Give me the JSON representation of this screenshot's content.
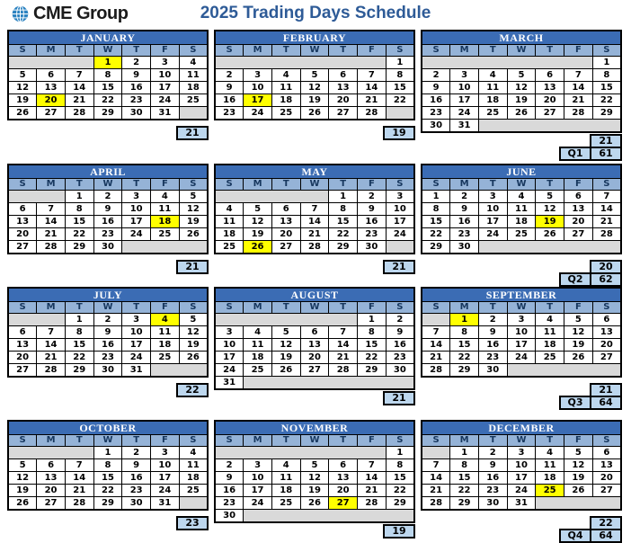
{
  "header": {
    "logo": {
      "icon": "globe-icon",
      "cme": "CME",
      "group": "Group"
    },
    "title": "2025 Trading Days Schedule"
  },
  "colors": {
    "month_header_bg": "#3B6CB4",
    "day_header_bg": "#95B3D7",
    "day_header_text": "#17375E",
    "empty_cell_bg": "#D9D9D9",
    "holiday_bg": "#FFFF00",
    "count_bg": "#BDD7EE",
    "title_color": "#2E5B97",
    "globe_blue": "#1E73B5"
  },
  "day_headers": [
    "S",
    "M",
    "T",
    "W",
    "T",
    "F",
    "S"
  ],
  "months": [
    {
      "name": "JANUARY",
      "trading_days": 21,
      "quarter": null,
      "weeks": [
        [
          {
            "gap": 3
          },
          {
            "day": 1,
            "holiday": true
          },
          2,
          3,
          4
        ],
        [
          5,
          6,
          7,
          8,
          9,
          10,
          11
        ],
        [
          12,
          13,
          14,
          15,
          16,
          17,
          18
        ],
        [
          19,
          {
            "day": 20,
            "holiday": true
          },
          21,
          22,
          23,
          24,
          25
        ],
        [
          26,
          27,
          28,
          29,
          30,
          31,
          {
            "gap": 1
          }
        ]
      ]
    },
    {
      "name": "FEBRUARY",
      "trading_days": 19,
      "quarter": null,
      "weeks": [
        [
          {
            "gap": 6
          },
          1
        ],
        [
          2,
          3,
          4,
          5,
          6,
          7,
          8
        ],
        [
          9,
          10,
          11,
          12,
          13,
          14,
          15
        ],
        [
          16,
          {
            "day": 17,
            "holiday": true
          },
          18,
          19,
          20,
          21,
          22
        ],
        [
          23,
          24,
          25,
          26,
          27,
          28,
          {
            "gap": 1
          }
        ]
      ]
    },
    {
      "name": "MARCH",
      "trading_days": 21,
      "quarter": {
        "label": "Q1",
        "value": 61
      },
      "weeks": [
        [
          {
            "gap": 6
          },
          1
        ],
        [
          2,
          3,
          4,
          5,
          6,
          7,
          8
        ],
        [
          9,
          10,
          11,
          12,
          13,
          14,
          15
        ],
        [
          16,
          17,
          18,
          19,
          20,
          21,
          22
        ],
        [
          23,
          24,
          25,
          26,
          27,
          28,
          29
        ],
        [
          30,
          31,
          {
            "gap": 5
          }
        ]
      ]
    },
    {
      "name": "APRIL",
      "trading_days": 21,
      "quarter": null,
      "weeks": [
        [
          {
            "gap": 2
          },
          1,
          2,
          3,
          4,
          5
        ],
        [
          6,
          7,
          8,
          9,
          10,
          11,
          12
        ],
        [
          13,
          14,
          15,
          16,
          17,
          {
            "day": 18,
            "holiday": true
          },
          19
        ],
        [
          20,
          21,
          22,
          23,
          24,
          25,
          26
        ],
        [
          27,
          28,
          29,
          30,
          {
            "gap": 3
          }
        ]
      ]
    },
    {
      "name": "MAY",
      "trading_days": 21,
      "quarter": null,
      "weeks": [
        [
          {
            "gap": 4
          },
          1,
          2,
          3
        ],
        [
          4,
          5,
          6,
          7,
          8,
          9,
          10
        ],
        [
          11,
          12,
          13,
          14,
          15,
          16,
          17
        ],
        [
          18,
          19,
          20,
          21,
          22,
          23,
          24
        ],
        [
          25,
          {
            "day": 26,
            "holiday": true
          },
          27,
          28,
          29,
          30,
          {
            "gap": 1
          }
        ]
      ]
    },
    {
      "name": "JUNE",
      "trading_days": 20,
      "quarter": {
        "label": "Q2",
        "value": 62
      },
      "weeks": [
        [
          1,
          2,
          3,
          4,
          5,
          6,
          7
        ],
        [
          8,
          9,
          10,
          11,
          12,
          13,
          14
        ],
        [
          15,
          16,
          17,
          18,
          {
            "day": 19,
            "holiday": true
          },
          20,
          21
        ],
        [
          22,
          23,
          24,
          25,
          26,
          27,
          28
        ],
        [
          29,
          30,
          {
            "gap": 5
          }
        ]
      ]
    },
    {
      "name": "JULY",
      "trading_days": 22,
      "quarter": null,
      "weeks": [
        [
          {
            "gap": 2
          },
          1,
          2,
          3,
          {
            "day": 4,
            "holiday": true
          },
          5
        ],
        [
          6,
          7,
          8,
          9,
          10,
          11,
          12
        ],
        [
          13,
          14,
          15,
          16,
          17,
          18,
          19
        ],
        [
          20,
          21,
          22,
          23,
          24,
          25,
          26
        ],
        [
          27,
          28,
          29,
          30,
          31,
          {
            "gap": 2
          }
        ]
      ]
    },
    {
      "name": "AUGUST",
      "trading_days": 21,
      "quarter": null,
      "weeks": [
        [
          {
            "gap": 5
          },
          1,
          2
        ],
        [
          3,
          4,
          5,
          6,
          7,
          8,
          9
        ],
        [
          10,
          11,
          12,
          13,
          14,
          15,
          16
        ],
        [
          17,
          18,
          19,
          20,
          21,
          22,
          23
        ],
        [
          24,
          25,
          26,
          27,
          28,
          29,
          30
        ],
        [
          31,
          {
            "gap": 6
          }
        ]
      ]
    },
    {
      "name": "SEPTEMBER",
      "trading_days": 21,
      "quarter": {
        "label": "Q3",
        "value": 64
      },
      "weeks": [
        [
          {
            "gap": 1
          },
          {
            "day": 1,
            "holiday": true
          },
          2,
          3,
          4,
          5,
          6
        ],
        [
          7,
          8,
          9,
          10,
          11,
          12,
          13
        ],
        [
          14,
          15,
          16,
          17,
          18,
          19,
          20
        ],
        [
          21,
          22,
          23,
          24,
          25,
          26,
          27
        ],
        [
          28,
          29,
          30,
          {
            "gap": 4
          }
        ]
      ]
    },
    {
      "name": "OCTOBER",
      "trading_days": 23,
      "quarter": null,
      "weeks": [
        [
          {
            "gap": 3
          },
          1,
          2,
          3,
          4
        ],
        [
          5,
          6,
          7,
          8,
          9,
          10,
          11
        ],
        [
          12,
          13,
          14,
          15,
          16,
          17,
          18
        ],
        [
          19,
          20,
          21,
          22,
          23,
          24,
          25
        ],
        [
          26,
          27,
          28,
          29,
          30,
          31,
          {
            "gap": 1
          }
        ]
      ]
    },
    {
      "name": "NOVEMBER",
      "trading_days": 19,
      "quarter": null,
      "weeks": [
        [
          {
            "gap": 6
          },
          1
        ],
        [
          2,
          3,
          4,
          5,
          6,
          7,
          8
        ],
        [
          9,
          10,
          11,
          12,
          13,
          14,
          15
        ],
        [
          16,
          17,
          18,
          19,
          20,
          21,
          22
        ],
        [
          23,
          24,
          25,
          26,
          {
            "day": 27,
            "holiday": true
          },
          28,
          29
        ],
        [
          30,
          {
            "gap": 6
          }
        ]
      ]
    },
    {
      "name": "DECEMBER",
      "trading_days": 22,
      "quarter": {
        "label": "Q4",
        "value": 64
      },
      "weeks": [
        [
          {
            "gap": 1
          },
          1,
          2,
          3,
          4,
          5,
          6
        ],
        [
          7,
          8,
          9,
          10,
          11,
          12,
          13
        ],
        [
          14,
          15,
          16,
          17,
          18,
          19,
          20
        ],
        [
          21,
          22,
          23,
          24,
          {
            "day": 25,
            "holiday": true
          },
          26,
          27
        ],
        [
          28,
          29,
          30,
          31,
          {
            "gap": 3
          }
        ]
      ]
    }
  ]
}
